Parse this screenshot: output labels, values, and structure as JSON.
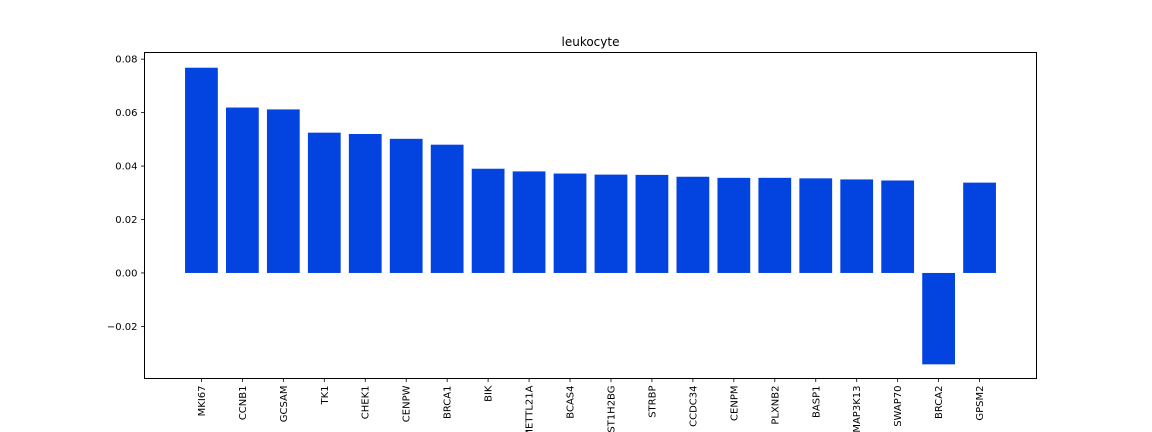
{
  "chart_data": {
    "type": "bar",
    "title": "leukocyte",
    "xlabel": "",
    "ylabel": "",
    "categories": [
      "MKI67",
      "CCNB1",
      "GCSAM",
      "TK1",
      "CHEK1",
      "CENPW",
      "BRCA1",
      "BIK",
      "METTL21A",
      "BCAS4",
      "HIST1H2BG",
      "STRBP",
      "CCDC34",
      "CENPM",
      "PLXNB2",
      "BASP1",
      "MAP3K13",
      "SWAP70",
      "BRCA2",
      "GPSM2"
    ],
    "values": [
      0.0768,
      0.0619,
      0.0612,
      0.0525,
      0.052,
      0.0502,
      0.048,
      0.039,
      0.038,
      0.0372,
      0.0368,
      0.0367,
      0.036,
      0.0356,
      0.0356,
      0.0354,
      0.035,
      0.0346,
      -0.0342,
      0.0338
    ],
    "ylim": [
      -0.0395,
      0.0825
    ],
    "yticks": [
      -0.02,
      0.0,
      0.02,
      0.04,
      0.06,
      0.08
    ],
    "ytick_labels": [
      "−0.02",
      "0.00",
      "0.02",
      "0.04",
      "0.06",
      "0.08"
    ],
    "bar_color": "#0343df",
    "grid": false,
    "legend": "none"
  }
}
